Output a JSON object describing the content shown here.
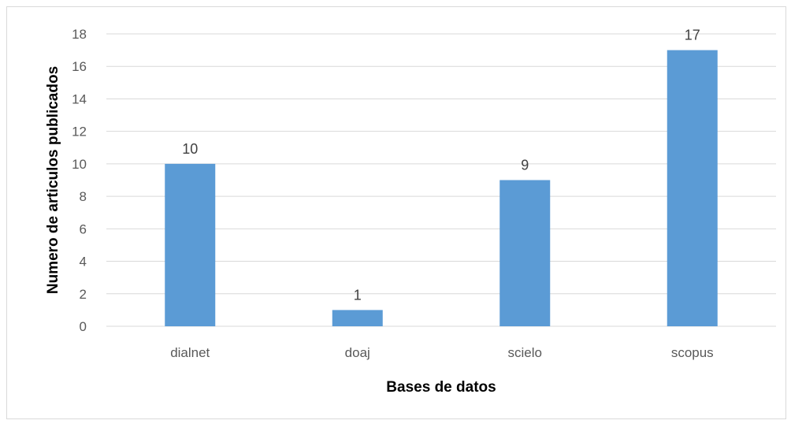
{
  "chart_data": {
    "type": "bar",
    "categories": [
      "dialnet",
      "doaj",
      "scielo",
      "scopus"
    ],
    "values": [
      10,
      1,
      9,
      17
    ],
    "xlabel": "Bases de datos",
    "ylabel": "Numero de articulos  publicados",
    "ylim": [
      0,
      18
    ],
    "yticks": [
      0,
      2,
      4,
      6,
      8,
      10,
      12,
      14,
      16,
      18
    ],
    "grid": true,
    "legend": "none",
    "colors": {
      "bar": "#5b9bd5",
      "grid": "#d9d9d9"
    }
  }
}
